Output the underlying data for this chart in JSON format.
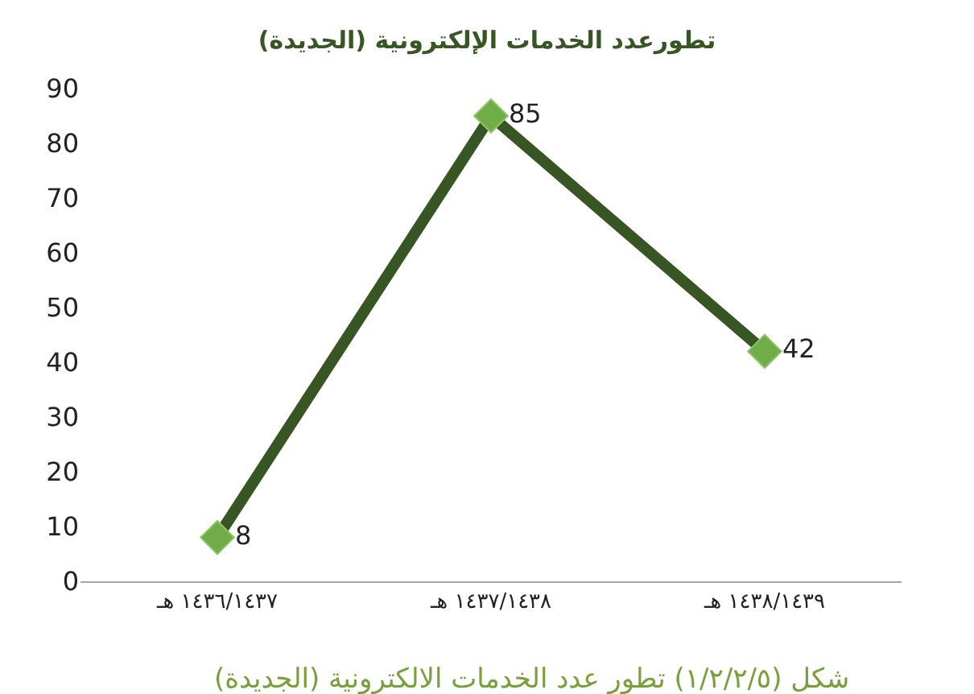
{
  "chart_data": {
    "type": "line",
    "title": "تطورعدد الخدمات الإلكترونية (الجديدة)",
    "categories": [
      "١٤٣٦/١٤٣٧ هـ",
      "١٤٣٧/١٤٣٨ هـ",
      "١٤٣٨/١٤٣٩ هـ"
    ],
    "series": [
      {
        "color": "#375623",
        "colors": [
          "#70ad47",
          "#70ad47",
          "#70ad47"
        ],
        "values": [
          8,
          85,
          42
        ]
      }
    ],
    "marker": "diamond",
    "data_labels": true,
    "legend": false,
    "ylim": [
      0,
      90
    ],
    "yticks": [
      0,
      10,
      20,
      30,
      40,
      50,
      60,
      70,
      80,
      90
    ],
    "annotations": [
      "شكل (١/٢/٢/٥) تطور عدد الخدمات الالكترونية (الجديدة)"
    ]
  }
}
